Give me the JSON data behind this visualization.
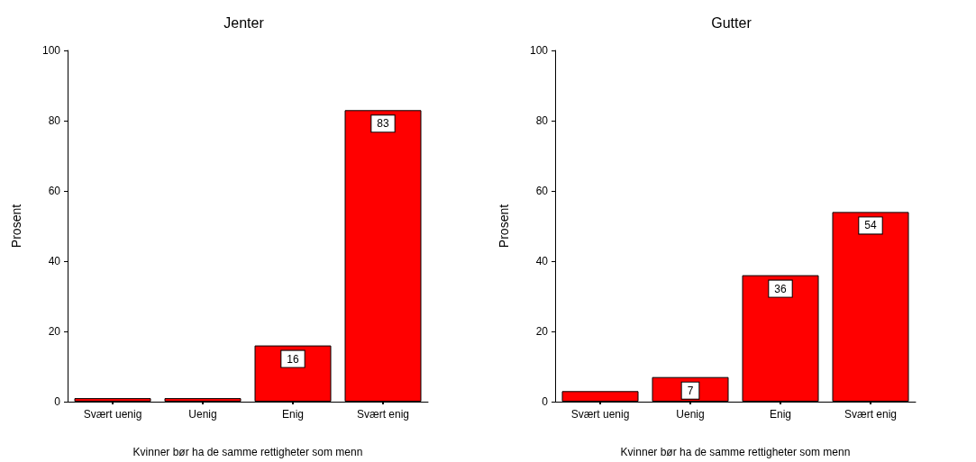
{
  "chart_data": [
    {
      "type": "bar",
      "title": "Jenter",
      "xlabel": "Kvinner bør ha de samme rettigheter som menn",
      "ylabel": "Prosent",
      "categories": [
        "Svært uenig",
        "Uenig",
        "Enig",
        "Svært enig"
      ],
      "series": [
        {
          "color": "#ff0000",
          "values": [
            1,
            1,
            16,
            83
          ],
          "value_labels": [
            null,
            null,
            "16",
            "83"
          ]
        }
      ],
      "ylim": [
        0,
        100
      ],
      "yticks": [
        0,
        20,
        40,
        60,
        80,
        100
      ]
    },
    {
      "type": "bar",
      "title": "Gutter",
      "xlabel": "Kvinner bør ha de samme rettigheter som menn",
      "ylabel": "Prosent",
      "categories": [
        "Svært uenig",
        "Uenig",
        "Enig",
        "Svært enig"
      ],
      "series": [
        {
          "color": "#ff0000",
          "values": [
            3,
            7,
            36,
            54
          ],
          "value_labels": [
            null,
            "7",
            "36",
            "54"
          ]
        }
      ],
      "ylim": [
        0,
        100
      ],
      "yticks": [
        0,
        20,
        40,
        60,
        80,
        100
      ]
    }
  ]
}
